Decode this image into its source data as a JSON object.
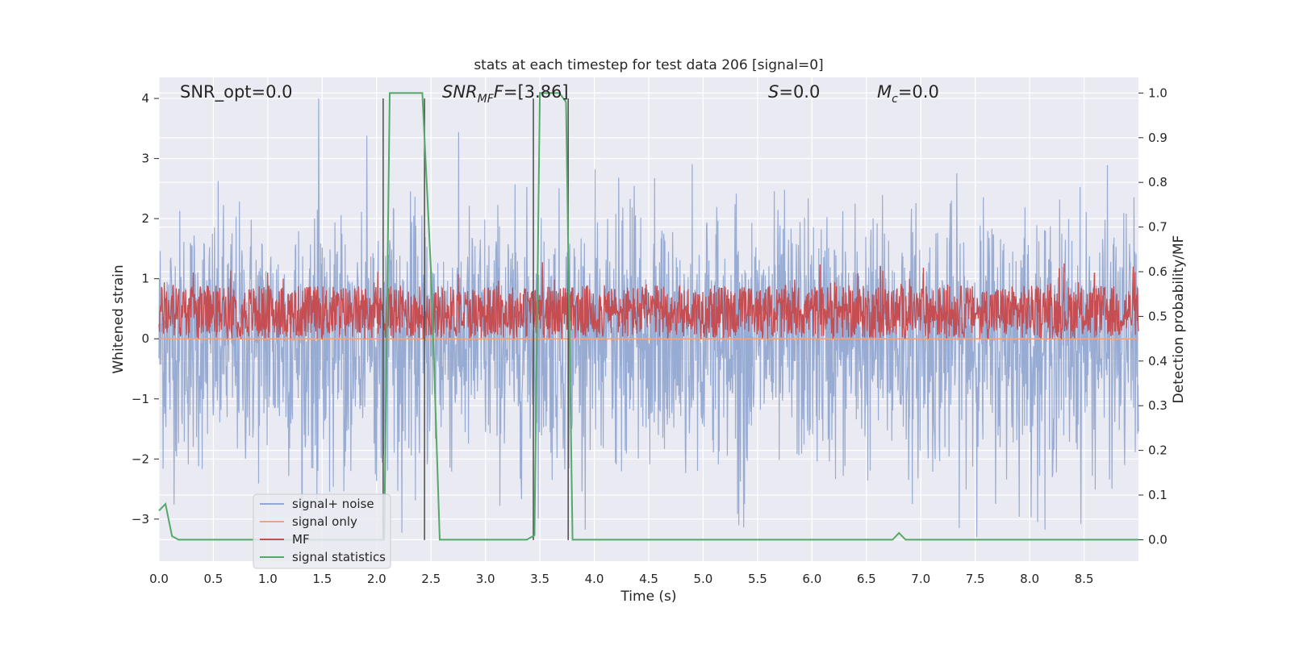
{
  "chart_data": {
    "type": "line",
    "title": "stats at each timestep for test data 206 [signal=0]",
    "xlabel": "Time (s)",
    "ylabel_left": "Whitened strain",
    "ylabel_right": "Detection probability/MF",
    "xlim": [
      0,
      9.0
    ],
    "ylim_left": [
      -3.7,
      4.35
    ],
    "ylim_right": [
      -0.048,
      1.035
    ],
    "xticks": [
      "0.0",
      "0.5",
      "1.0",
      "1.5",
      "2.0",
      "2.5",
      "3.0",
      "3.5",
      "4.0",
      "4.5",
      "5.0",
      "5.5",
      "6.0",
      "6.5",
      "7.0",
      "7.5",
      "8.0",
      "8.5"
    ],
    "xtick_values": [
      0,
      0.5,
      1,
      1.5,
      2,
      2.5,
      3,
      3.5,
      4,
      4.5,
      5,
      5.5,
      6,
      6.5,
      7,
      7.5,
      8,
      8.5
    ],
    "yticks_left": [
      "−3",
      "−2",
      "−1",
      "0",
      "1",
      "2",
      "3",
      "4"
    ],
    "ytick_values_left": [
      -3,
      -2,
      -1,
      0,
      1,
      2,
      3,
      4
    ],
    "yticks_right": [
      "0.0",
      "0.1",
      "0.2",
      "0.3",
      "0.4",
      "0.5",
      "0.6",
      "0.7",
      "0.8",
      "0.9",
      "1.0"
    ],
    "ytick_values_right": [
      0,
      0.1,
      0.2,
      0.3,
      0.4,
      0.5,
      0.6,
      0.7,
      0.8,
      0.9,
      1.0
    ],
    "grid": true,
    "legend_position": "lower-left",
    "annotations": {
      "snr_opt": "SNR_opt=0.0",
      "snr_mf_main": "SNR",
      "snr_mf_sub": "MF",
      "snr_mf_rest": "=[3.86]",
      "s_main": "S",
      "s_rest": "=0.0",
      "mc_main": "M",
      "mc_sub": "c",
      "mc_rest": "=0.0"
    },
    "series": [
      {
        "name": "signal+ noise",
        "color": "#92a8d1",
        "style": "noise",
        "amplitude_range": [
          -3.3,
          4.0
        ]
      },
      {
        "name": "signal only",
        "color": "#e8a58a",
        "style": "flat",
        "value": 0.0
      },
      {
        "name": "MF",
        "color": "#c44e52",
        "style": "band",
        "center": 0.5,
        "amplitude_range": [
          0.42,
          0.64
        ]
      },
      {
        "name": "signal statistics",
        "color": "#55a868",
        "x": [
          0.0,
          0.06,
          0.12,
          0.18,
          2.02,
          2.07,
          2.12,
          2.42,
          2.5,
          2.58,
          3.38,
          3.45,
          3.5,
          3.68,
          3.74,
          3.8,
          6.74,
          6.8,
          6.86,
          9.0
        ],
        "y": [
          0.065,
          0.08,
          0.008,
          0.0,
          0.0,
          0.0,
          1.0,
          1.0,
          0.6,
          0.0,
          0.0,
          0.01,
          1.0,
          1.0,
          0.98,
          0.0,
          0.0,
          0.015,
          0.0,
          0.0
        ]
      }
    ],
    "vertical_lines_x": [
      2.06,
      2.44,
      3.44,
      3.76
    ],
    "vertical_lines_color": "#4c4c4c",
    "vertical_lines_range": [
      -3.35,
      4.0
    ]
  }
}
